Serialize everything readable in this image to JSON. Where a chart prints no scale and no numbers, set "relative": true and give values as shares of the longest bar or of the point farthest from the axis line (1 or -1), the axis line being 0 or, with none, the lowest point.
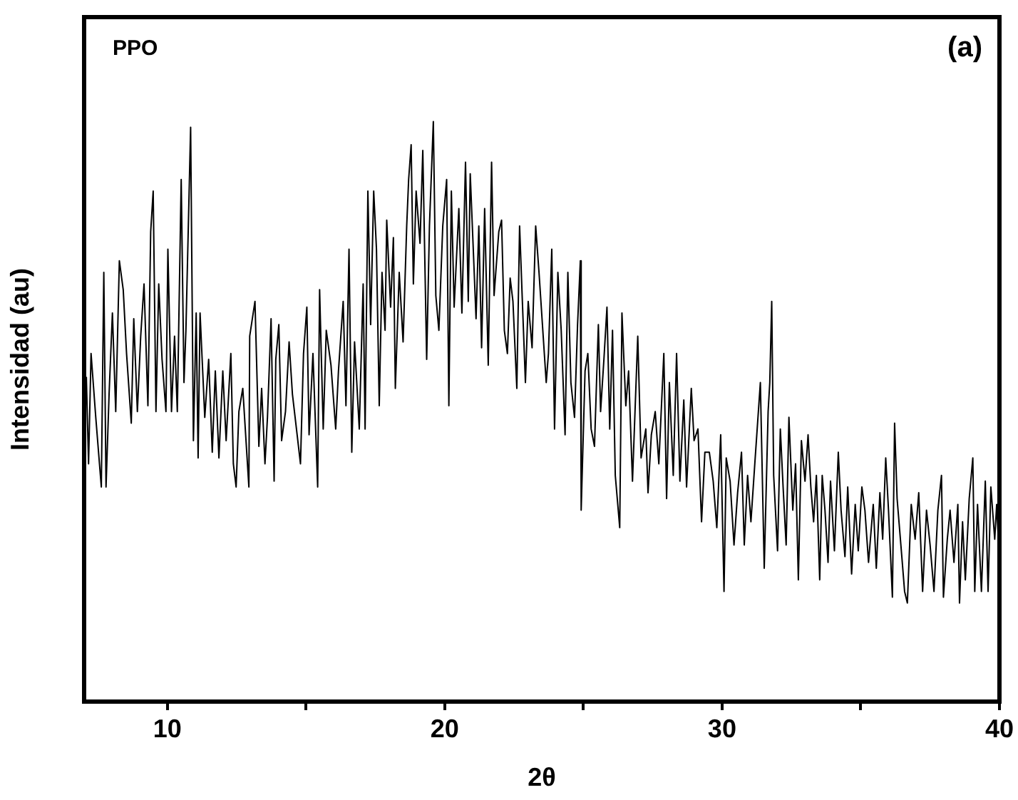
{
  "chart_data": {
    "type": "line",
    "xlabel": "2θ",
    "ylabel": "Intensidad (au)",
    "annotations": [
      "PPO",
      "(a)"
    ],
    "relative": true,
    "xlim": [
      7,
      40
    ],
    "xticks": [
      10,
      {
        "value": 15,
        "label": null
      },
      20,
      {
        "value": 25,
        "label": null
      },
      30,
      {
        "value": 35,
        "label": null
      },
      40
    ],
    "grid": false,
    "legend": false,
    "marker": "none",
    "line_style": "solid",
    "series": [
      {
        "color": "#000000",
        "x": [
          7.08,
          7.16,
          7.25,
          7.42,
          7.62,
          7.71,
          7.79,
          7.9,
          8.02,
          8.14,
          8.27,
          8.41,
          8.53,
          8.7,
          8.79,
          8.92,
          9.04,
          9.16,
          9.3,
          9.4,
          9.49,
          9.59,
          9.69,
          9.81,
          9.95,
          10.02,
          10.15,
          10.26,
          10.36,
          10.5,
          10.6,
          10.67,
          10.84,
          10.94,
          11.04,
          11.11,
          11.18,
          11.35,
          11.49,
          11.62,
          11.73,
          11.86,
          12.0,
          12.12,
          12.29,
          12.38,
          12.48,
          12.58,
          12.72,
          12.94,
          12.97,
          13.16,
          13.3,
          13.4,
          13.52,
          13.61,
          13.74,
          13.85,
          13.91,
          14.02,
          14.12,
          14.26,
          14.39,
          14.51,
          14.68,
          14.8,
          14.91,
          15.03,
          15.11,
          15.25,
          15.42,
          15.49,
          15.62,
          15.73,
          15.9,
          16.07,
          16.17,
          16.34,
          16.44,
          16.55,
          16.65,
          16.75,
          16.92,
          17.06,
          17.13,
          17.23,
          17.33,
          17.44,
          17.54,
          17.64,
          17.74,
          17.85,
          17.91,
          18.05,
          18.15,
          18.22,
          18.36,
          18.5,
          18.63,
          18.7,
          18.79,
          18.87,
          18.97,
          19.11,
          19.21,
          19.35,
          19.45,
          19.59,
          19.68,
          19.79,
          19.93,
          20.07,
          20.15,
          20.24,
          20.34,
          20.51,
          20.62,
          20.75,
          20.85,
          20.92,
          21.03,
          21.13,
          21.23,
          21.33,
          21.44,
          21.57,
          21.69,
          21.78,
          21.95,
          22.05,
          22.15,
          22.26,
          22.36,
          22.46,
          22.6,
          22.7,
          22.8,
          22.91,
          23.01,
          23.15,
          23.28,
          23.4,
          23.66,
          23.74,
          23.86,
          23.96,
          24.08,
          24.2,
          24.34,
          24.44,
          24.55,
          24.68,
          24.79,
          24.89,
          24.92,
          25.06,
          25.16,
          25.28,
          25.4,
          25.54,
          25.62,
          25.74,
          25.85,
          25.95,
          26.05,
          26.15,
          26.31,
          26.39,
          26.53,
          26.63,
          26.77,
          26.96,
          27.08,
          27.25,
          27.33,
          27.45,
          27.59,
          27.72,
          27.9,
          28.0,
          28.1,
          28.24,
          28.36,
          28.48,
          28.62,
          28.72,
          28.89,
          28.99,
          29.13,
          29.26,
          29.38,
          29.54,
          29.68,
          29.81,
          29.95,
          30.07,
          30.15,
          30.29,
          30.43,
          30.56,
          30.7,
          30.8,
          30.92,
          31.04,
          31.18,
          31.38,
          31.52,
          31.66,
          31.72,
          31.79,
          31.86,
          32.0,
          32.1,
          32.2,
          32.31,
          32.41,
          32.55,
          32.65,
          32.75,
          32.86,
          32.99,
          33.1,
          33.2,
          33.3,
          33.4,
          33.52,
          33.61,
          33.71,
          33.82,
          33.91,
          34.05,
          34.19,
          34.29,
          34.43,
          34.53,
          34.67,
          34.8,
          34.91,
          35.04,
          35.15,
          35.28,
          35.45,
          35.56,
          35.69,
          35.79,
          35.9,
          36.0,
          36.14,
          36.22,
          36.31,
          36.48,
          36.58,
          36.68,
          36.82,
          36.96,
          37.09,
          37.23,
          37.37,
          37.5,
          37.64,
          37.78,
          37.91,
          37.98,
          38.12,
          38.22,
          38.36,
          38.5,
          38.56,
          38.67,
          38.77,
          38.91,
          39.04,
          39.11,
          39.21,
          39.35,
          39.49,
          39.59,
          39.69,
          39.83,
          39.9,
          39.98
        ],
        "values": [
          0.56,
          0.41,
          0.6,
          0.49,
          0.37,
          0.74,
          0.37,
          0.53,
          0.67,
          0.5,
          0.76,
          0.71,
          0.6,
          0.48,
          0.66,
          0.5,
          0.63,
          0.72,
          0.51,
          0.81,
          0.88,
          0.5,
          0.72,
          0.59,
          0.5,
          0.78,
          0.5,
          0.63,
          0.5,
          0.9,
          0.55,
          0.64,
          0.99,
          0.45,
          0.67,
          0.42,
          0.67,
          0.49,
          0.59,
          0.43,
          0.57,
          0.42,
          0.57,
          0.45,
          0.6,
          0.41,
          0.37,
          0.5,
          0.54,
          0.37,
          0.63,
          0.69,
          0.44,
          0.54,
          0.41,
          0.49,
          0.66,
          0.38,
          0.59,
          0.65,
          0.45,
          0.5,
          0.62,
          0.53,
          0.46,
          0.41,
          0.6,
          0.68,
          0.46,
          0.6,
          0.37,
          0.71,
          0.47,
          0.64,
          0.58,
          0.47,
          0.57,
          0.69,
          0.51,
          0.78,
          0.43,
          0.62,
          0.47,
          0.72,
          0.47,
          0.88,
          0.65,
          0.88,
          0.78,
          0.51,
          0.74,
          0.64,
          0.83,
          0.68,
          0.8,
          0.54,
          0.74,
          0.62,
          0.82,
          0.9,
          0.96,
          0.72,
          0.88,
          0.79,
          0.95,
          0.59,
          0.82,
          1,
          0.7,
          0.64,
          0.82,
          0.9,
          0.51,
          0.88,
          0.68,
          0.85,
          0.67,
          0.93,
          0.69,
          0.91,
          0.78,
          0.66,
          0.82,
          0.61,
          0.85,
          0.58,
          0.93,
          0.7,
          0.81,
          0.83,
          0.64,
          0.6,
          0.73,
          0.69,
          0.54,
          0.82,
          0.69,
          0.55,
          0.69,
          0.61,
          0.82,
          0.74,
          0.55,
          0.6,
          0.78,
          0.47,
          0.74,
          0.64,
          0.46,
          0.74,
          0.55,
          0.49,
          0.65,
          0.76,
          0.33,
          0.57,
          0.6,
          0.47,
          0.44,
          0.65,
          0.5,
          0.59,
          0.68,
          0.47,
          0.64,
          0.39,
          0.3,
          0.67,
          0.51,
          0.57,
          0.38,
          0.63,
          0.42,
          0.47,
          0.36,
          0.46,
          0.5,
          0.41,
          0.6,
          0.35,
          0.55,
          0.39,
          0.6,
          0.38,
          0.52,
          0.37,
          0.54,
          0.45,
          0.47,
          0.31,
          0.43,
          0.43,
          0.38,
          0.3,
          0.46,
          0.19,
          0.42,
          0.38,
          0.27,
          0.36,
          0.43,
          0.27,
          0.39,
          0.31,
          0.41,
          0.55,
          0.23,
          0.5,
          0.55,
          0.69,
          0.39,
          0.26,
          0.47,
          0.37,
          0.27,
          0.49,
          0.33,
          0.41,
          0.21,
          0.45,
          0.38,
          0.46,
          0.37,
          0.31,
          0.39,
          0.21,
          0.39,
          0.33,
          0.24,
          0.38,
          0.26,
          0.43,
          0.33,
          0.25,
          0.37,
          0.22,
          0.34,
          0.26,
          0.37,
          0.33,
          0.24,
          0.34,
          0.23,
          0.36,
          0.28,
          0.42,
          0.33,
          0.18,
          0.48,
          0.35,
          0.25,
          0.19,
          0.17,
          0.34,
          0.28,
          0.36,
          0.19,
          0.33,
          0.27,
          0.19,
          0.33,
          0.39,
          0.18,
          0.28,
          0.33,
          0.24,
          0.34,
          0.17,
          0.31,
          0.21,
          0.35,
          0.42,
          0.19,
          0.34,
          0.19,
          0.38,
          0.19,
          0.37,
          0.28,
          0.34,
          0.26
        ]
      }
    ]
  }
}
